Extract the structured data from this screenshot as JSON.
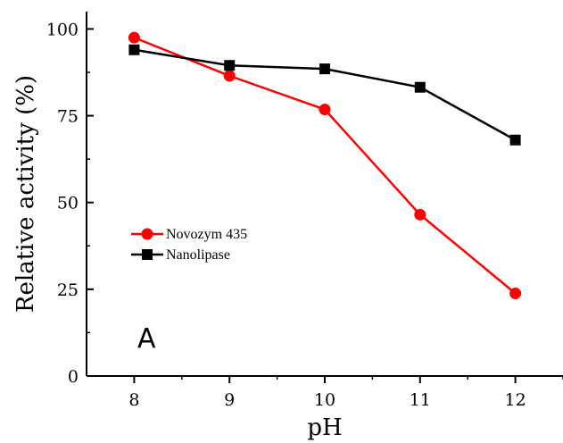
{
  "chart_data": {
    "type": "line",
    "panel_label": "A",
    "xlabel": "pH",
    "ylabel": "Relative activity (%)",
    "x": [
      8,
      9,
      10,
      11,
      12
    ],
    "xticks": [
      "8",
      "9",
      "10",
      "11",
      "12"
    ],
    "xlim": [
      7.5,
      12.5
    ],
    "yticks": [
      "0",
      "25",
      "50",
      "75",
      "100"
    ],
    "ylim": [
      0,
      105
    ],
    "grid": false,
    "legend_position": "center-left",
    "series": [
      {
        "name": "Novozym 435",
        "marker": "circle",
        "color": "#ff0000",
        "values": [
          97.5,
          86.5,
          76.8,
          46.5,
          23.8
        ]
      },
      {
        "name": "Nanolipase",
        "marker": "square",
        "color": "#000000",
        "values": [
          94.0,
          89.5,
          88.5,
          83.2,
          68.0
        ]
      }
    ]
  }
}
